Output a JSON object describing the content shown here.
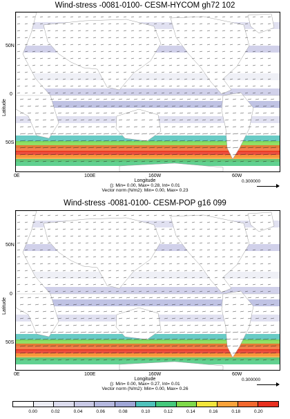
{
  "panels": [
    {
      "title": "Wind-stress  -0081-0100- CESM-HYCOM gh72 102",
      "ylabel": "Latitude",
      "yticks": [
        "50N",
        "0",
        "50S"
      ],
      "xticks": [
        "0E",
        "100E",
        "160W",
        "60W"
      ],
      "xlabel": "Longitude",
      "stats_line1": "(): Min= 0.00, Max= 0.28, Int= 0.01",
      "stats_line2": "Vector norm  (N/m2): Min= 0.00, Max= 0.23",
      "ref_vector": "0.300000"
    },
    {
      "title": "Wind-stress  -0081-0100- CESM-POP g16 099",
      "ylabel": "Latitude",
      "yticks": [
        "50N",
        "0",
        "50S"
      ],
      "xticks": [
        "0E",
        "100E",
        "160W",
        "60W"
      ],
      "xlabel": "Longitude",
      "stats_line1": "(): Min= 0.00, Max= 0.27, Int= 0.01",
      "stats_line2": "Vector norm  (N/m2): Min= 0.00, Max= 0.26",
      "ref_vector": "0.300000"
    }
  ],
  "colorbar": {
    "labels": [
      "0.00",
      "0.02",
      "0.04",
      "0.06",
      "0.08",
      "0.10",
      "0.12",
      "0.14",
      "0.16",
      "0.18",
      "0.20"
    ],
    "colors": [
      "#ffffff",
      "#ecedf4",
      "#dcdcee",
      "#c9c9e6",
      "#b5b8df",
      "#9fa6d6",
      "#4fc2bb",
      "#45c97c",
      "#7fd94a",
      "#f2e53c",
      "#f9a23a",
      "#f2682e",
      "#e8301f"
    ]
  }
}
